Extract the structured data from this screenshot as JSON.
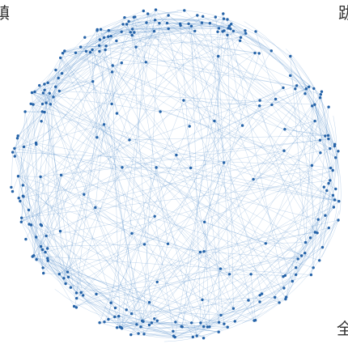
{
  "labels": {
    "top_left": "镇",
    "top_right": "跋",
    "bottom_right": "全"
  },
  "colors": {
    "background": "#ffffff",
    "node": "#2563a8",
    "edge": "#4a86c8"
  }
}
